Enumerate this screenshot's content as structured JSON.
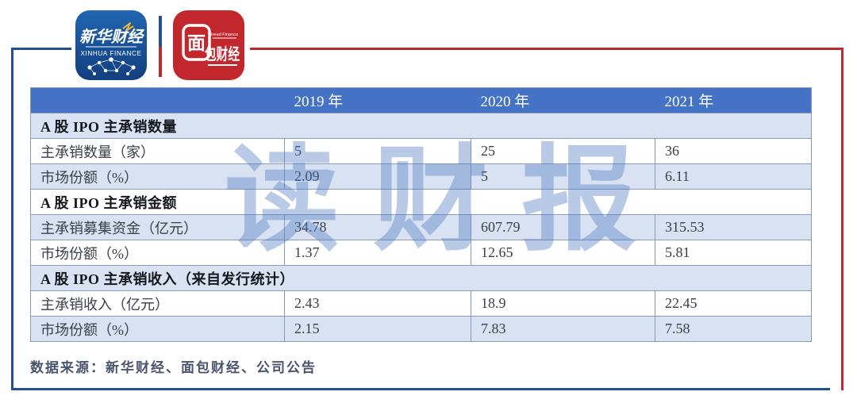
{
  "logos": {
    "xinhua": {
      "title": "新华财经",
      "subtitle": "XINHUA FINANCE"
    },
    "bread": {
      "boxed_char": "面",
      "rest": "包财经",
      "subtitle": "Bread Finance"
    }
  },
  "watermark": "读财报",
  "source_note": "数据来源：新华财经、面包财经、公司公告",
  "colors": {
    "header_bg": "#4472C4",
    "row_alt_bg": "#D9E2F3",
    "table_border": "#8C9BB5",
    "frame_blue": "#24508F",
    "frame_red": "#BE2A2E",
    "logo_blue": "#1C5AA4",
    "logo_red": "#C2272E",
    "watermark_blue": "#B3C7E8"
  },
  "chart_data": {
    "type": "table",
    "columns": [
      "",
      "2019 年",
      "2020 年",
      "2021 年"
    ],
    "rows": [
      {
        "type": "section",
        "label": "A 股 IPO 主承销数量"
      },
      {
        "type": "data",
        "label": "主承销数量（家）",
        "values": [
          "5",
          "25",
          "36"
        ]
      },
      {
        "type": "data",
        "label": "市场份额（%）",
        "values": [
          "2.09",
          "5",
          "6.11"
        ]
      },
      {
        "type": "section",
        "label": "A 股 IPO 主承销金额"
      },
      {
        "type": "data",
        "label": "主承销募集资金（亿元）",
        "values": [
          "34.78",
          "607.79",
          "315.53"
        ]
      },
      {
        "type": "data",
        "label": "市场份额（%）",
        "values": [
          "1.37",
          "12.65",
          "5.81"
        ]
      },
      {
        "type": "section",
        "label": "A 股 IPO 主承销收入（来自发行统计）"
      },
      {
        "type": "data",
        "label": "主承销收入（亿元）",
        "values": [
          "2.43",
          "18.9",
          "22.45"
        ]
      },
      {
        "type": "data",
        "label": "市场份额（%）",
        "values": [
          "2.15",
          "7.83",
          "7.58"
        ]
      }
    ]
  }
}
